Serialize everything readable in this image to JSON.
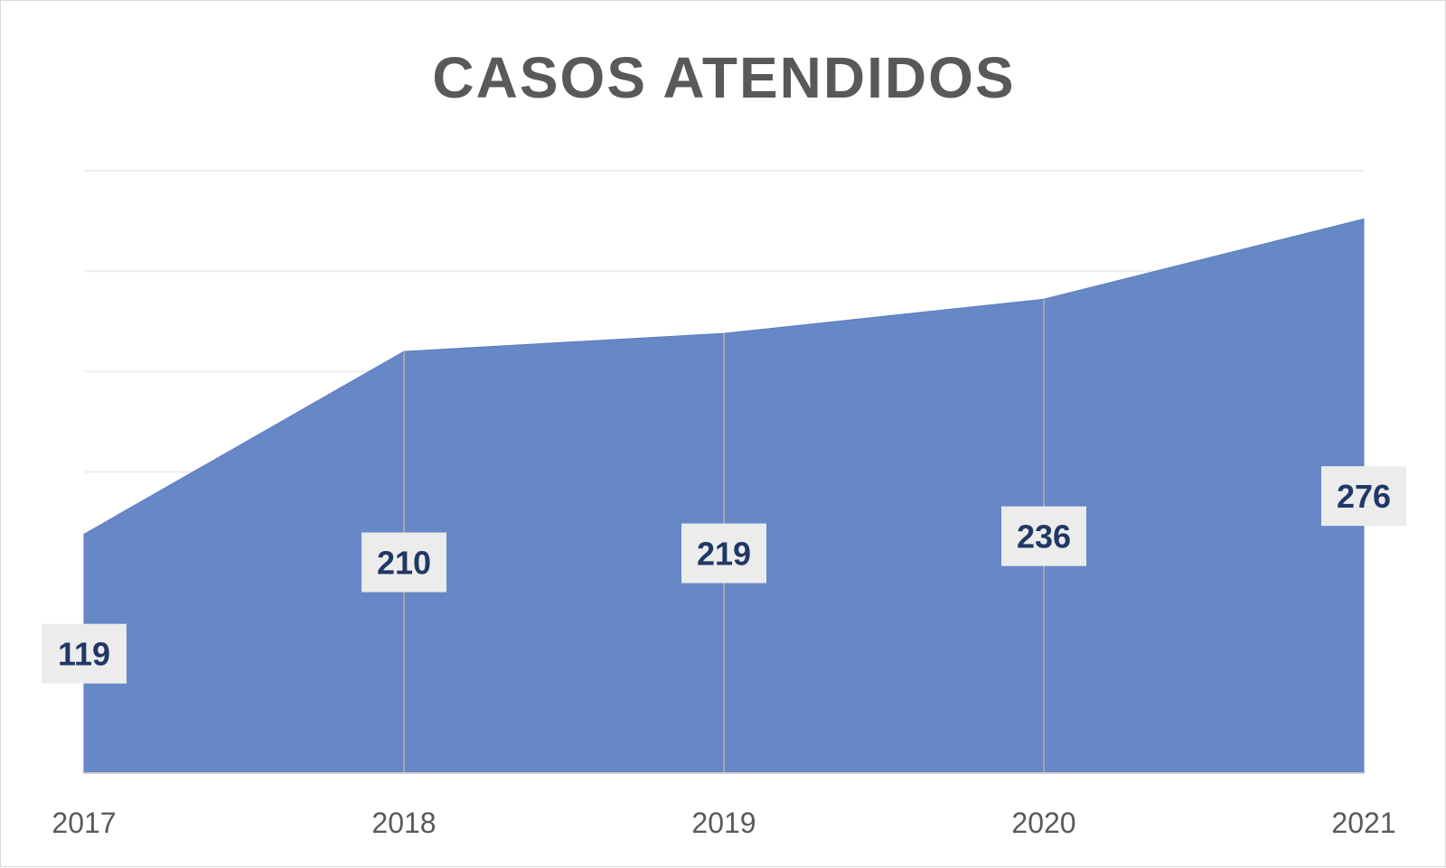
{
  "chart_data": {
    "type": "area",
    "title": "CASOS ATENDIDOS",
    "xlabel": "",
    "ylabel": "",
    "categories": [
      "2017",
      "2018",
      "2019",
      "2020",
      "2021"
    ],
    "values": [
      119,
      210,
      219,
      236,
      276
    ],
    "ylim": [
      0,
      300
    ],
    "grid": true,
    "legend": "none",
    "colors": {
      "area": "#6788c7",
      "edge": "#5b7dbd",
      "label_bg": "#ececec",
      "label_text": "#203864",
      "tick_text": "#595959",
      "gridline": "#ececec",
      "dropline": "#a6a6a6",
      "baseline": "#d0d0d0"
    }
  }
}
